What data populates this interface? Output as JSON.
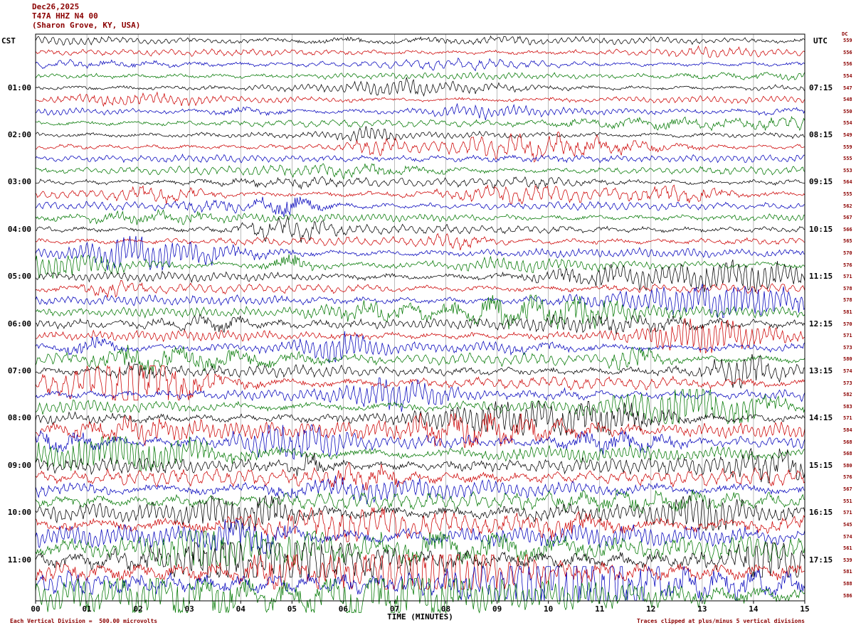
{
  "header": {
    "date": "Dec26,2025",
    "station": "T47A HHZ N4 00",
    "location": "(Sharon Grove, KY, USA)"
  },
  "footer": {
    "scale_note": "Each Vertical Division =  500.00 microvolts",
    "clip_note": "Traces clipped at plus/minus 5 vertical divisions"
  },
  "chart_data": {
    "type": "seismogram",
    "title": "T47A HHZ N4 00 (Sharon Grove, KY, USA) helicorder record, Dec26,2025",
    "rows": 48,
    "minutes": 15,
    "traces_per_hour": 4,
    "seed": 1337,
    "dc_label": "DC",
    "x_axis": {
      "label": "TIME (MINUTES)",
      "range": [
        0,
        15
      ],
      "ticks": [
        "00",
        "01",
        "02",
        "03",
        "04",
        "05",
        "06",
        "07",
        "08",
        "09",
        "10",
        "11",
        "12",
        "13",
        "14",
        "15"
      ]
    },
    "left_axis": {
      "label": "CST",
      "times": [
        "01:00",
        "02:00",
        "03:00",
        "04:00",
        "05:00",
        "06:00",
        "07:00",
        "08:00",
        "09:00",
        "10:00",
        "11:00"
      ]
    },
    "right_axis": {
      "label": "UTC",
      "times": [
        "07:15",
        "08:15",
        "09:15",
        "10:15",
        "11:15",
        "12:15",
        "13:15",
        "14:15",
        "15:15",
        "16:15",
        "17:15"
      ]
    },
    "trace_colors": [
      "#000000",
      "#cc0000",
      "#0000bb",
      "#007700"
    ],
    "grid_color": "#909090",
    "dc_offsets": [
      "559",
      "556",
      "556",
      "554",
      "547",
      "548",
      "550",
      "554",
      "549",
      "559",
      "555",
      "553",
      "564",
      "555",
      "562",
      "567",
      "566",
      "565",
      "570",
      "576",
      "571",
      "578",
      "578",
      "581",
      "570",
      "571",
      "573",
      "580",
      "574",
      "573",
      "582",
      "583",
      "571",
      "584",
      "568",
      "568",
      "580",
      "576",
      "567",
      "551",
      "571",
      "545",
      "574",
      "561",
      "539",
      "581",
      "588",
      "586"
    ],
    "amplitude_profile": [
      3.0,
      3.0,
      3.0,
      3.0,
      3.0,
      3.0,
      3.0,
      3.2,
      3.2,
      3.2,
      3.2,
      3.4,
      3.4,
      3.6,
      3.6,
      3.6,
      3.8,
      3.8,
      4.0,
      4.0,
      4.2,
      4.2,
      4.4,
      4.4,
      4.6,
      4.6,
      4.8,
      5.0,
      5.2,
      5.6,
      5.4,
      5.8,
      6.0,
      6.4,
      6.2,
      6.6,
      6.8,
      7.2,
      7.0,
      7.6,
      8.5,
      9.0,
      9.5,
      10.0,
      11.0,
      11.5,
      12.0,
      12.0
    ],
    "waveform_note": "continuous seismic noise traces, amplitude increasing toward later hours, clipped at plus/minus 5 vertical divisions"
  }
}
